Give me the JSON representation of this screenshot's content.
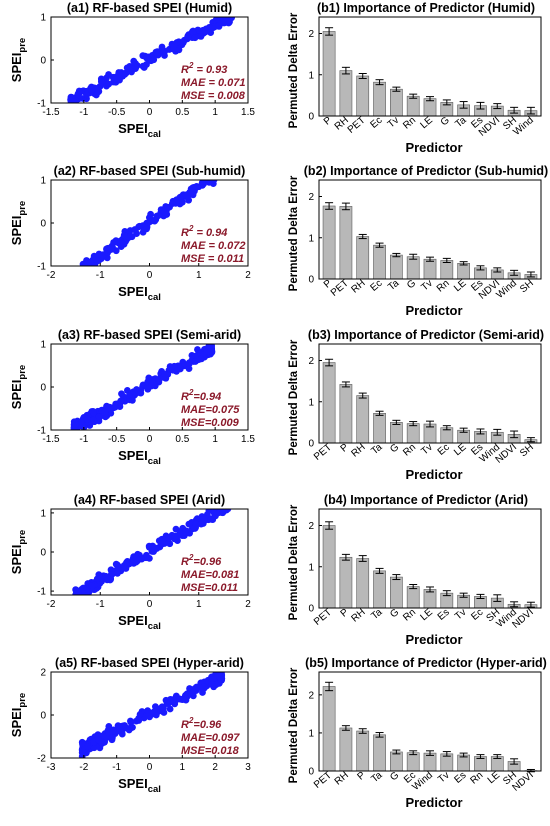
{
  "chart_data": [
    {
      "type": "scatter",
      "title": "(a1) RF-based SPEI (Humid)",
      "xlabel_main": "SPEI",
      "xlabel_sub": "cal",
      "ylabel_main": "SPEI",
      "ylabel_sub": "pre",
      "xlim": [
        -1.5,
        1.5
      ],
      "ylim": [
        -1,
        1
      ],
      "xticks": [
        "-1.5",
        "-1",
        "-0.5",
        "0",
        "0.5",
        "1",
        "1.5"
      ],
      "yticks": [
        "-1",
        "0",
        "1"
      ],
      "xtick_values": [
        -1.5,
        -1,
        -0.5,
        0,
        0.5,
        1,
        1.5
      ],
      "ytick_values": [
        -1,
        0,
        1
      ],
      "point_color": "#1a1aff",
      "scatter_range": [
        -1.2,
        1.25
      ],
      "fit": {
        "slope": 0.83,
        "intercept": 0.02
      },
      "stats": {
        "r2_label": "R",
        "r2_exp": "2",
        "r2_value": " = 0.93",
        "mae": "MAE = 0.071",
        "mse": "MSE = 0.008"
      },
      "stat_color": "#8b1a2b"
    },
    {
      "type": "scatter",
      "title": "(a2) RF-based SPEI (Sub-humid)",
      "xlabel_main": "SPEI",
      "xlabel_sub": "cal",
      "ylabel_main": "SPEI",
      "ylabel_sub": "pre",
      "xlim": [
        -2,
        2
      ],
      "ylim": [
        -1,
        1
      ],
      "xticks": [
        "-2",
        "-1",
        "0",
        "1",
        "2"
      ],
      "yticks": [
        "-1",
        "0",
        "1"
      ],
      "xtick_values": [
        -2,
        -1,
        0,
        1,
        2
      ],
      "ytick_values": [
        -1,
        0,
        1
      ],
      "point_color": "#1a1aff",
      "scatter_range": [
        -1.35,
        1.75
      ],
      "fit": {
        "slope": 0.82,
        "intercept": 0.03
      },
      "stats": {
        "r2_label": "R",
        "r2_exp": "2",
        "r2_value": " = 0.94",
        "mae": "MAE = 0.072",
        "mse": "MSE = 0.011"
      },
      "stat_color": "#8b1a2b"
    },
    {
      "type": "scatter",
      "title": "(a3) RF-based SPEI (Semi-arid)",
      "xlabel_main": "SPEI",
      "xlabel_sub": "cal",
      "ylabel_main": "SPEI",
      "ylabel_sub": "pre",
      "xlim": [
        -1.5,
        1.5
      ],
      "ylim": [
        -1,
        1
      ],
      "xticks": [
        "-1.5",
        "-1",
        "-0.5",
        "0",
        "0.5",
        "1",
        "1.5"
      ],
      "yticks": [
        "-1",
        "0",
        "1"
      ],
      "xtick_values": [
        -1.5,
        -1,
        -0.5,
        0,
        0.5,
        1,
        1.5
      ],
      "ytick_values": [
        -1,
        0,
        1
      ],
      "point_color": "#1a1aff",
      "scatter_range": [
        -1.15,
        0.95
      ],
      "fit": {
        "slope": 0.9,
        "intercept": 0.05
      },
      "stats": {
        "r2_label": "R",
        "r2_exp": "2",
        "r2_value": "=0.94",
        "mae": "MAE=0.075",
        "mse": "MSE=0.009"
      },
      "stat_color": "#8b1a2b"
    },
    {
      "type": "scatter",
      "title": "(a4) RF-based SPEI (Arid)",
      "xlabel_main": "SPEI",
      "xlabel_sub": "cal",
      "ylabel_main": "SPEI",
      "ylabel_sub": "pre",
      "xlim": [
        -2,
        2
      ],
      "ylim": [
        -1.1,
        1.1
      ],
      "xticks": [
        "-2",
        "-1",
        "0",
        "1",
        "2"
      ],
      "yticks": [
        "-1",
        "0",
        "1"
      ],
      "xtick_values": [
        -2,
        -1,
        0,
        1,
        2
      ],
      "ytick_values": [
        -1,
        0,
        1
      ],
      "point_color": "#1a1aff",
      "scatter_range": [
        -1.5,
        1.6
      ],
      "fit": {
        "slope": 0.75,
        "intercept": 0.02
      },
      "stats": {
        "r2_label": "R",
        "r2_exp": "2",
        "r2_value": "=0.96",
        "mae": "MAE=0.081",
        "mse": "MSE=0.011"
      },
      "stat_color": "#8b1a2b"
    },
    {
      "type": "scatter",
      "title": "(a5) RF-based SPEI (Hyper-arid)",
      "xlabel_main": "SPEI",
      "xlabel_sub": "cal",
      "ylabel_main": "SPEI",
      "ylabel_sub": "pre",
      "xlim": [
        -3,
        3
      ],
      "ylim": [
        -2,
        2
      ],
      "xticks": [
        "-3",
        "-2",
        "-1",
        "0",
        "1",
        "2",
        "3"
      ],
      "yticks": [
        "-2",
        "0",
        "2"
      ],
      "xtick_values": [
        -3,
        -2,
        -1,
        0,
        1,
        2,
        3
      ],
      "ytick_values": [
        -2,
        0,
        2
      ],
      "point_color": "#1a1aff",
      "scatter_range": [
        -2.05,
        2.2
      ],
      "fit": {
        "slope": 0.8,
        "intercept": 0.05
      },
      "stats": {
        "r2_label": "R",
        "r2_exp": "2",
        "r2_value": "=0.96",
        "mae": "MAE=0.097",
        "mse": "MSE=0.018"
      },
      "stat_color": "#8b1a2b"
    },
    {
      "type": "bar",
      "title": "(b1) Importance of Predictor (Humid)",
      "xlabel": "Predictor",
      "ylabel": "Permuted Delta Error",
      "ylim": [
        0,
        2.4
      ],
      "yticks": [
        "0",
        "1",
        "2"
      ],
      "ytick_values": [
        0,
        1,
        2
      ],
      "categories": [
        "P",
        "RH",
        "PET",
        "Ec",
        "Tv",
        "Rn",
        "LE",
        "G",
        "Ta",
        "Es",
        "NDVI",
        "SH",
        "Wind"
      ],
      "values": [
        2.05,
        1.1,
        0.97,
        0.82,
        0.65,
        0.48,
        0.42,
        0.33,
        0.27,
        0.25,
        0.24,
        0.14,
        0.13
      ],
      "errors": [
        0.09,
        0.08,
        0.06,
        0.06,
        0.05,
        0.05,
        0.05,
        0.06,
        0.08,
        0.08,
        0.06,
        0.07,
        0.08
      ],
      "bar_color": "#b8b8b8"
    },
    {
      "type": "bar",
      "title": "(b2) Importance of Predictor (Sub-humid)",
      "xlabel": "Predictor",
      "ylabel": "Permuted Delta Error",
      "ylim": [
        0,
        2.4
      ],
      "yticks": [
        "0",
        "1",
        "2"
      ],
      "ytick_values": [
        0,
        1,
        2
      ],
      "categories": [
        "P",
        "PET",
        "RH",
        "Ec",
        "Ta",
        "G",
        "Tv",
        "Rn",
        "LE",
        "Es",
        "NDVI",
        "Wind",
        "SH"
      ],
      "values": [
        1.77,
        1.76,
        1.03,
        0.82,
        0.58,
        0.54,
        0.48,
        0.45,
        0.38,
        0.27,
        0.22,
        0.15,
        0.11
      ],
      "errors": [
        0.08,
        0.08,
        0.05,
        0.05,
        0.04,
        0.06,
        0.05,
        0.05,
        0.04,
        0.05,
        0.05,
        0.06,
        0.06
      ],
      "bar_color": "#b8b8b8"
    },
    {
      "type": "bar",
      "title": "(b3) Importance of Predictor (Semi-arid)",
      "xlabel": "Predictor",
      "ylabel": "Permuted Delta Error",
      "ylim": [
        0,
        2.4
      ],
      "yticks": [
        "0",
        "1",
        "2"
      ],
      "ytick_values": [
        0,
        1,
        2
      ],
      "categories": [
        "PET",
        "P",
        "RH",
        "Ta",
        "G",
        "Rn",
        "Tv",
        "Ec",
        "LE",
        "Es",
        "Wind",
        "NDVI",
        "SH"
      ],
      "values": [
        1.95,
        1.42,
        1.15,
        0.72,
        0.5,
        0.47,
        0.46,
        0.37,
        0.31,
        0.28,
        0.26,
        0.21,
        0.08
      ],
      "errors": [
        0.08,
        0.06,
        0.06,
        0.05,
        0.05,
        0.05,
        0.07,
        0.05,
        0.05,
        0.06,
        0.07,
        0.08,
        0.05
      ],
      "bar_color": "#b8b8b8"
    },
    {
      "type": "bar",
      "title": "(b4) Importance of Predictor (Arid)",
      "xlabel": "Predictor",
      "ylabel": "Permuted Delta Error",
      "ylim": [
        0,
        2.4
      ],
      "yticks": [
        "0",
        "1",
        "2"
      ],
      "ytick_values": [
        0,
        1,
        2
      ],
      "categories": [
        "PET",
        "P",
        "RH",
        "Ta",
        "G",
        "Rn",
        "LE",
        "Es",
        "Tv",
        "Ec",
        "SH",
        "Wind",
        "NDVI"
      ],
      "values": [
        2.0,
        1.23,
        1.2,
        0.9,
        0.75,
        0.52,
        0.45,
        0.36,
        0.31,
        0.28,
        0.24,
        0.09,
        0.08
      ],
      "errors": [
        0.09,
        0.07,
        0.07,
        0.06,
        0.06,
        0.05,
        0.06,
        0.06,
        0.05,
        0.05,
        0.08,
        0.06,
        0.06
      ],
      "bar_color": "#b8b8b8"
    },
    {
      "type": "bar",
      "title": "(b5) Importance of Predictor (Hyper-arid)",
      "xlabel": "Predictor",
      "ylabel": "Permuted Delta Error",
      "ylim": [
        0,
        2.6
      ],
      "yticks": [
        "0",
        "1",
        "2"
      ],
      "ytick_values": [
        0,
        1,
        2
      ],
      "categories": [
        "PET",
        "RH",
        "P",
        "Ta",
        "G",
        "Ec",
        "Wind",
        "Tv",
        "Es",
        "Rn",
        "LE",
        "SH",
        "NDVI"
      ],
      "values": [
        2.22,
        1.13,
        1.05,
        0.95,
        0.5,
        0.48,
        0.47,
        0.45,
        0.42,
        0.38,
        0.38,
        0.25,
        0.01
      ],
      "errors": [
        0.11,
        0.06,
        0.06,
        0.06,
        0.05,
        0.05,
        0.06,
        0.06,
        0.05,
        0.05,
        0.05,
        0.07,
        0.03
      ],
      "bar_color": "#b8b8b8"
    }
  ]
}
